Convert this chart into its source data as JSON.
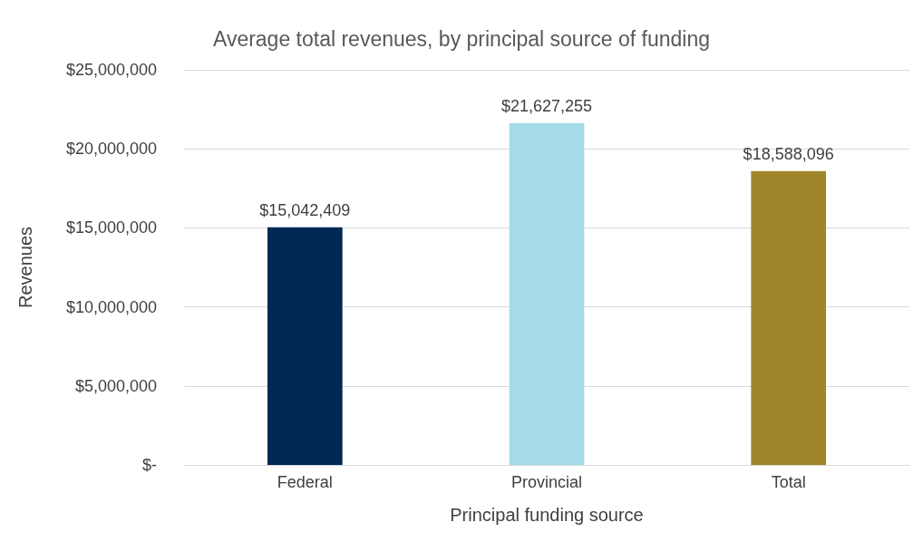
{
  "chart_data": {
    "type": "bar",
    "title": "Average total revenues, by principal source of funding",
    "xlabel": "Principal funding source",
    "ylabel": "Revenues",
    "categories": [
      "Federal",
      "Provincial",
      "Total"
    ],
    "values": [
      15042409,
      21627255,
      18588096
    ],
    "colors": [
      "#002855",
      "#a5dbe8",
      "#a0862b"
    ],
    "value_labels": [
      "$15,042,409",
      "$21,627,255",
      "$18,588,096"
    ],
    "ylim": [
      0,
      25000000
    ],
    "yticks": [
      {
        "value": 0,
        "label": "$-"
      },
      {
        "value": 5000000,
        "label": "$5,000,000"
      },
      {
        "value": 10000000,
        "label": "$10,000,000"
      },
      {
        "value": 15000000,
        "label": "$15,000,000"
      },
      {
        "value": 20000000,
        "label": "$20,000,000"
      },
      {
        "value": 25000000,
        "label": "$25,000,000"
      }
    ],
    "grid": "y"
  }
}
